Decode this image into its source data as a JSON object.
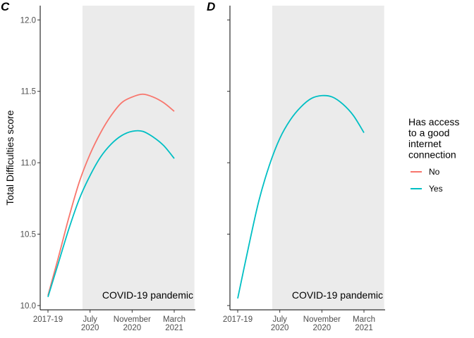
{
  "legend": {
    "title_lines": [
      "Has access",
      "to a good",
      "internet",
      "connection"
    ],
    "entries": [
      {
        "label": "No",
        "color": "#F8766D"
      },
      {
        "label": "Yes",
        "color": "#00BFC4"
      }
    ]
  },
  "chart_data": [
    {
      "type": "line",
      "panel": "C",
      "ylabel": "Total Difficulties score",
      "ylim": [
        9.97,
        12.1
      ],
      "y_ticks": [
        10.0,
        10.5,
        11.0,
        11.5,
        12.0
      ],
      "y_tick_labels": [
        "10.0",
        "10.5",
        "11.0",
        "11.5",
        "12.0"
      ],
      "x_ticks": [
        {
          "lines": [
            "2017-19"
          ]
        },
        {
          "lines": [
            "July",
            "2020"
          ]
        },
        {
          "lines": [
            "November",
            "2020"
          ]
        },
        {
          "lines": [
            "March",
            "2021"
          ]
        }
      ],
      "shaded_region": {
        "from": 0.82,
        "to": 3.48,
        "label": "COVID-19 pandemic"
      },
      "series": [
        {
          "name": "No",
          "color": "#F8766D",
          "x": [
            0,
            0.25,
            0.5,
            0.75,
            1.0,
            1.25,
            1.5,
            1.75,
            2.0,
            2.25,
            2.5,
            2.75,
            3.0
          ],
          "y": [
            10.07,
            10.34,
            10.62,
            10.87,
            11.06,
            11.21,
            11.33,
            11.42,
            11.46,
            11.48,
            11.46,
            11.42,
            11.36
          ]
        },
        {
          "name": "Yes",
          "color": "#00BFC4",
          "x": [
            0,
            0.25,
            0.5,
            0.75,
            1.0,
            1.25,
            1.5,
            1.75,
            2.0,
            2.25,
            2.5,
            2.75,
            3.0
          ],
          "y": [
            10.06,
            10.3,
            10.54,
            10.75,
            10.91,
            11.04,
            11.13,
            11.19,
            11.22,
            11.22,
            11.18,
            11.12,
            11.03
          ]
        }
      ]
    },
    {
      "type": "line",
      "panel": "D",
      "ylim": [
        9.97,
        12.1
      ],
      "y_ticks": [
        10.0,
        10.5,
        11.0,
        11.5,
        12.0
      ],
      "x_ticks": [
        {
          "lines": [
            "2017-19"
          ]
        },
        {
          "lines": [
            "July",
            "2020"
          ]
        },
        {
          "lines": [
            "November",
            "2020"
          ]
        },
        {
          "lines": [
            "March",
            "2021"
          ]
        }
      ],
      "shaded_region": {
        "from": 0.82,
        "to": 3.48,
        "label": "COVID-19 pandemic"
      },
      "series": [
        {
          "name": "Yes",
          "color": "#00BFC4",
          "x": [
            0,
            0.25,
            0.5,
            0.75,
            1.0,
            1.25,
            1.5,
            1.75,
            2.0,
            2.25,
            2.5,
            2.75,
            3.0
          ],
          "y": [
            10.05,
            10.4,
            10.73,
            10.98,
            11.17,
            11.3,
            11.39,
            11.45,
            11.47,
            11.46,
            11.41,
            11.33,
            11.21
          ]
        }
      ]
    }
  ]
}
